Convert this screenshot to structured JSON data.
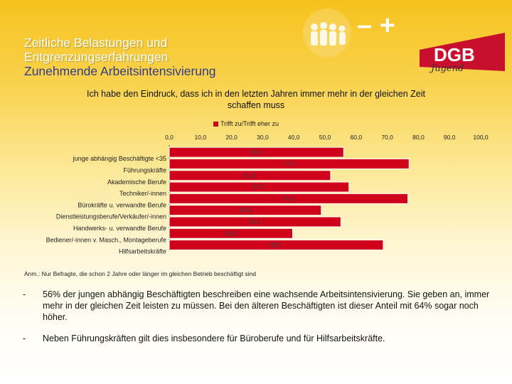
{
  "header": {
    "line1": "Zeitliche Belastungen und",
    "line2": "Entgrenzungserfahrungen",
    "line3": "Zunehmende Arbeitsintensivierung"
  },
  "logo": {
    "brand": "DGB",
    "subbrand": "Jugend",
    "minus_plus": "– +"
  },
  "colors": {
    "bar": "#d0021b",
    "accent": "#2e3b8c",
    "brand_red": "#c8102e"
  },
  "chart_data": {
    "type": "bar",
    "orientation": "horizontal",
    "title": "Ich habe den Eindruck, dass ich in den letzten Jahren immer mehr in der gleichen Zeit schaffen muss",
    "legend": [
      "Trifft zu/Trifft eher zu"
    ],
    "xlim": [
      0,
      100
    ],
    "tick_labels": [
      "0,0",
      "10,0",
      "20,0",
      "30,0",
      "40,0",
      "50,0",
      "60,0",
      "70,0",
      "80,0",
      "90,0",
      "100,0"
    ],
    "categories": [
      "junge abhängig Beschäftigte <35",
      "Führungskräfte",
      "Akademische Berufe",
      "Techniker/-innen",
      "Bürokräfte u. verwandte Berufe",
      "Dienstleistungsberufe/Verkäufer/-innen",
      "Handwerks- u. verwandte Berufe",
      "Bediener/-innen v. Masch., Montageberufe",
      "Hilfsarbeitskräfte"
    ],
    "values": [
      56.0,
      77.0,
      51.8,
      57.7,
      76.6,
      48.8,
      55.1,
      39.6,
      68.7
    ],
    "value_labels": [
      "56,0",
      "77,0",
      "51,8",
      "57,7",
      "76,6",
      "48,8",
      "55,1",
      "39,6",
      "68,7"
    ]
  },
  "note": "Anm.: Nur Befragte, die schon 2 Jahre oder länger im gleichen Betrieb beschäftigt sind",
  "bullets": [
    {
      "dash": "-",
      "text": "56% der jungen abhängig Beschäftigten beschreiben eine wachsende Arbeitsintensivierung. Sie geben an, immer mehr in der gleichen Zeit leisten zu müssen. Bei den älteren Beschäftigten ist dieser Anteil mit 64% sogar noch höher."
    },
    {
      "dash": "-",
      "text": "Neben Führungskräften gilt dies insbesondere für Büroberufe und für Hilfsarbeitskräfte."
    }
  ]
}
